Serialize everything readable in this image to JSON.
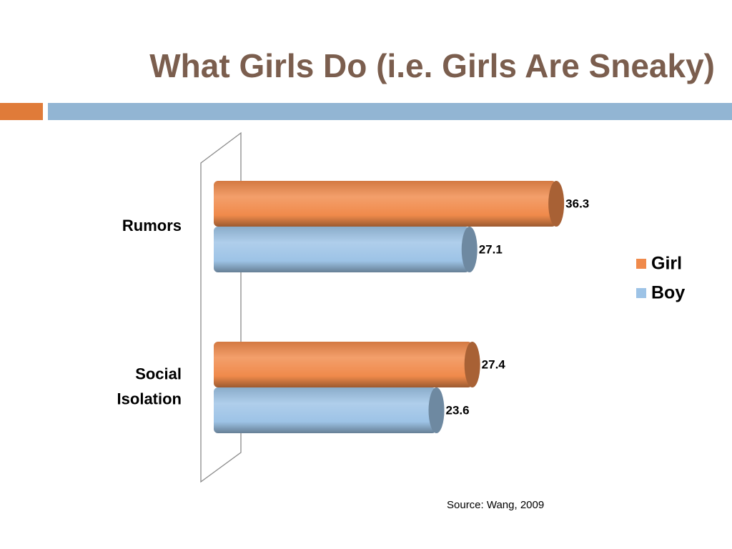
{
  "slide": {
    "title": "What Girls Do (i.e. Girls Are Sneaky)",
    "source": "Source: Wang, 2009"
  },
  "colors": {
    "title": "#7B5E4E",
    "accent_bar": "#E07B39",
    "main_bar": "#92B5D3",
    "girl": "#F08A4B",
    "boy": "#9DC3E6"
  },
  "chart_data": {
    "type": "bar",
    "orientation": "horizontal",
    "style": "3d-cylinder",
    "categories": [
      "Rumors",
      "Social Isolation"
    ],
    "series": [
      {
        "name": "Girl",
        "values": [
          36.3,
          27.4
        ],
        "color": "#F08A4B"
      },
      {
        "name": "Boy",
        "values": [
          27.1,
          23.6
        ],
        "color": "#9DC3E6"
      }
    ],
    "data_labels": true,
    "legend": "right",
    "xaxis_visible": false,
    "xlim": [
      0,
      40
    ]
  }
}
